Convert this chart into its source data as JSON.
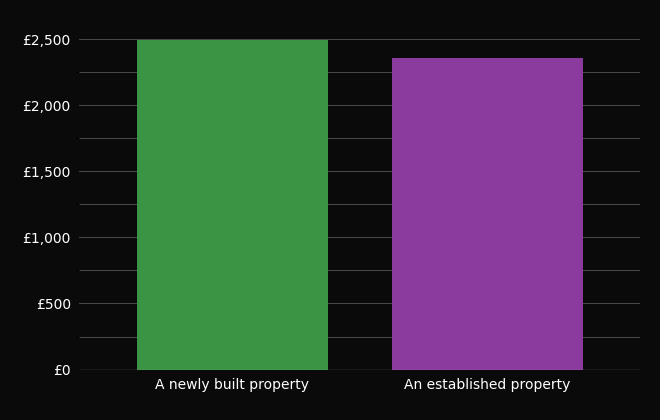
{
  "categories": [
    "A newly built property",
    "An established property"
  ],
  "values": [
    2490,
    2360
  ],
  "bar_colors": [
    "#3a9444",
    "#8b3a9e"
  ],
  "background_color": "#0a0a0a",
  "text_color": "#ffffff",
  "grid_color": "#555555",
  "ylim": [
    0,
    2700
  ],
  "yticks": [
    0,
    500,
    1000,
    1500,
    2000,
    2500
  ],
  "bar_width": 0.75,
  "figsize": [
    6.6,
    4.2
  ],
  "dpi": 100
}
